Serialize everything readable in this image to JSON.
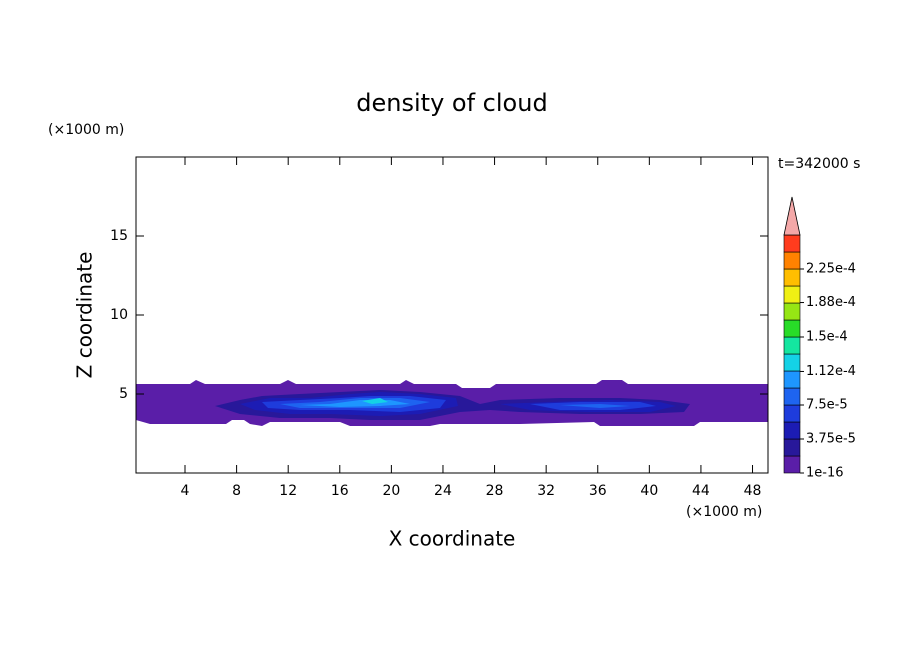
{
  "chart_data": {
    "type": "contour",
    "title": "density of cloud",
    "x_label": "X coordinate",
    "y_label": "Z coordinate",
    "x_unit": "(×1000 m)",
    "y_unit": "(×1000 m)",
    "time_label": "t=342000 s",
    "xlim": [
      0.2,
      49.2
    ],
    "xticks": [
      4,
      8,
      12,
      16,
      20,
      24,
      28,
      32,
      36,
      40,
      44,
      48
    ],
    "ylim": [
      0,
      20
    ],
    "yticks": [
      5,
      10,
      15
    ],
    "colorbar": {
      "clim": [
        1e-16,
        0.0002625
      ],
      "ticks": [
        1e-16,
        {
          "value": 3.75e-05,
          "label": "3.75e-5"
        },
        {
          "value": 7.5e-05,
          "label": "7.5e-5"
        },
        {
          "value": 0.000112,
          "label": "1.12e-4"
        },
        {
          "value": 0.00015,
          "label": "1.5e-4"
        },
        {
          "value": 0.000188,
          "label": "1.88e-4"
        },
        {
          "value": 0.000225,
          "label": "2.25e-4"
        }
      ],
      "colors": [
        "#5a1ea8",
        "#28189a",
        "#1c1cb4",
        "#1e3cdc",
        "#1e64f0",
        "#1e96ff",
        "#14d2e6",
        "#14e6a0",
        "#28dc28",
        "#96e614",
        "#f0f014",
        "#ffbe00",
        "#ff8200",
        "#ff3c1e"
      ],
      "extend_color": "#f4a8a8"
    }
  }
}
